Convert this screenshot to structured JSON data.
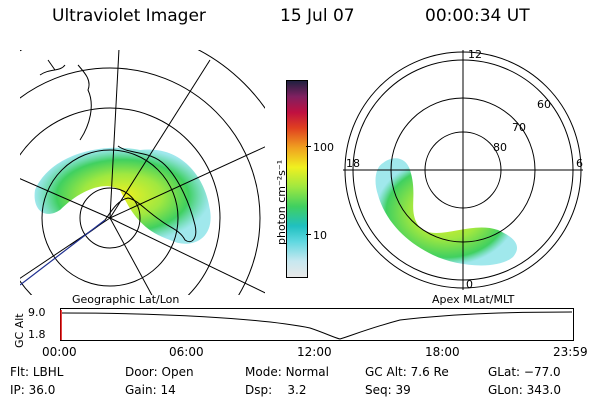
{
  "header": {
    "title": "Ultraviolet Imager",
    "date": "15 Jul 07",
    "time": "00:00:34 UT"
  },
  "left_panel": {
    "caption": "Geographic Lat/Lon"
  },
  "right_panel": {
    "caption": "Apex MLat/MLT",
    "mlt_labels": {
      "top": "12",
      "left": "18",
      "right": "6",
      "bottom": "0"
    },
    "lat_labels": [
      "60",
      "70",
      "80"
    ]
  },
  "colorbar": {
    "label": "photon cm⁻²s⁻¹",
    "ticks": [
      "100",
      "10"
    ],
    "scale": "log",
    "colors": [
      "#e8e8e8",
      "#c8e8f0",
      "#60d8e0",
      "#20c0c0",
      "#40d060",
      "#a0e840",
      "#f0f020",
      "#f0a020",
      "#e04020",
      "#c01040",
      "#802060",
      "#202040"
    ]
  },
  "altitude_plot": {
    "ylabel": "GC Alt",
    "yticks": [
      "9.0",
      "1.8"
    ],
    "xticks": [
      "00:00",
      "06:00",
      "12:00",
      "18:00",
      "23:59"
    ]
  },
  "info": {
    "row1": [
      {
        "key": "Flt:",
        "val": "LBHL"
      },
      {
        "key": "Door:",
        "val": "Open"
      },
      {
        "key": "Mode:",
        "val": "Normal"
      },
      {
        "key": "GC Alt:",
        "val": "7.6 Re"
      },
      {
        "key": "GLat:",
        "val": "−77.0"
      }
    ],
    "row2": [
      {
        "key": "IP:",
        "val": "36.0"
      },
      {
        "key": "Gain:",
        "val": "14"
      },
      {
        "key": "Dsp:",
        "val": "3.2"
      },
      {
        "key": "Seq:",
        "val": "39"
      },
      {
        "key": "GLon:",
        "val": "343.0"
      }
    ]
  }
}
